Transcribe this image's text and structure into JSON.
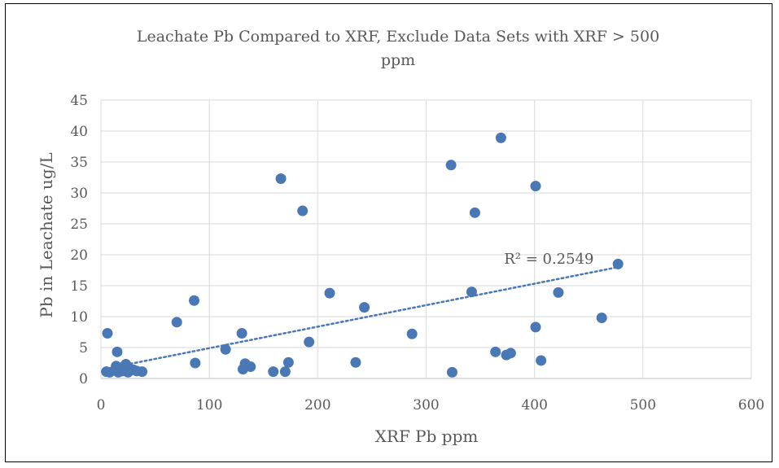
{
  "chart_data": {
    "type": "scatter",
    "title_lines": [
      "Leachate Pb Compared to XRF, Exclude Data Sets with XRF > 500",
      "ppm"
    ],
    "xlabel": "XRF Pb ppm",
    "ylabel": "Pb in Leachate ug/L",
    "xlim": [
      0,
      600
    ],
    "ylim": [
      0,
      45
    ],
    "x_ticks": [
      0,
      100,
      200,
      300,
      400,
      500,
      600
    ],
    "y_ticks": [
      0,
      5,
      10,
      15,
      20,
      25,
      30,
      35,
      40,
      45
    ],
    "grid": true,
    "marker_color": "#4a78b5",
    "trendline": {
      "type": "linear",
      "color": "#4a78b5",
      "style": "dotted",
      "x_range": [
        5,
        477
      ],
      "y_range": [
        1.6,
        18.0
      ],
      "label": "R² = 0.2549"
    },
    "points": [
      {
        "x": 5,
        "y": 1.1
      },
      {
        "x": 6,
        "y": 7.3
      },
      {
        "x": 8,
        "y": 1.0
      },
      {
        "x": 13,
        "y": 1.3
      },
      {
        "x": 14,
        "y": 2.0
      },
      {
        "x": 15,
        "y": 4.3
      },
      {
        "x": 16,
        "y": 1.0
      },
      {
        "x": 17,
        "y": 1.6
      },
      {
        "x": 20,
        "y": 1.2
      },
      {
        "x": 21,
        "y": 1.9
      },
      {
        "x": 23,
        "y": 2.3
      },
      {
        "x": 25,
        "y": 1.0
      },
      {
        "x": 27,
        "y": 1.5
      },
      {
        "x": 30,
        "y": 1.4
      },
      {
        "x": 33,
        "y": 1.2
      },
      {
        "x": 38,
        "y": 1.1
      },
      {
        "x": 70,
        "y": 9.1
      },
      {
        "x": 86,
        "y": 12.6
      },
      {
        "x": 87,
        "y": 2.5
      },
      {
        "x": 115,
        "y": 4.7
      },
      {
        "x": 130,
        "y": 7.3
      },
      {
        "x": 131,
        "y": 1.5
      },
      {
        "x": 133,
        "y": 2.4
      },
      {
        "x": 138,
        "y": 1.9
      },
      {
        "x": 159,
        "y": 1.1
      },
      {
        "x": 166,
        "y": 32.3
      },
      {
        "x": 170,
        "y": 1.1
      },
      {
        "x": 173,
        "y": 2.6
      },
      {
        "x": 186,
        "y": 27.1
      },
      {
        "x": 192,
        "y": 5.9
      },
      {
        "x": 211,
        "y": 13.8
      },
      {
        "x": 235,
        "y": 2.6
      },
      {
        "x": 243,
        "y": 11.5
      },
      {
        "x": 287,
        "y": 7.2
      },
      {
        "x": 323,
        "y": 34.5
      },
      {
        "x": 324,
        "y": 1.0
      },
      {
        "x": 342,
        "y": 14.0
      },
      {
        "x": 345,
        "y": 26.8
      },
      {
        "x": 364,
        "y": 4.3
      },
      {
        "x": 369,
        "y": 38.9
      },
      {
        "x": 374,
        "y": 3.8
      },
      {
        "x": 378,
        "y": 4.1
      },
      {
        "x": 401,
        "y": 31.1
      },
      {
        "x": 401,
        "y": 8.3
      },
      {
        "x": 406,
        "y": 2.9
      },
      {
        "x": 422,
        "y": 13.9
      },
      {
        "x": 462,
        "y": 9.8
      },
      {
        "x": 477,
        "y": 18.5
      }
    ]
  }
}
